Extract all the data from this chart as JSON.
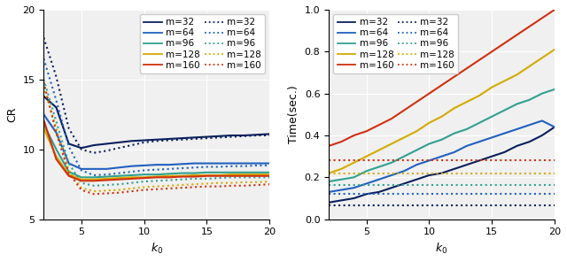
{
  "colors": {
    "m32": "#0a1f5c",
    "m64": "#2060c0",
    "m96": "#30a090",
    "m128": "#d4aa00",
    "m160": "#d03010"
  },
  "k0_left": [
    2,
    3,
    4,
    5,
    6,
    7,
    8,
    9,
    10,
    11,
    12,
    13,
    14,
    15,
    16,
    17,
    18,
    19,
    20
  ],
  "k0_right": [
    2,
    3,
    4,
    5,
    6,
    7,
    8,
    9,
    10,
    11,
    12,
    13,
    14,
    15,
    16,
    17,
    18,
    19,
    20
  ],
  "CR_solid_m32": [
    13.8,
    13.0,
    10.4,
    10.1,
    10.3,
    10.4,
    10.5,
    10.6,
    10.65,
    10.7,
    10.75,
    10.8,
    10.85,
    10.9,
    10.95,
    11.0,
    11.0,
    11.05,
    11.1
  ],
  "CR_solid_m64": [
    12.5,
    11.2,
    9.0,
    8.6,
    8.6,
    8.6,
    8.7,
    8.8,
    8.85,
    8.9,
    8.9,
    8.95,
    9.0,
    9.0,
    9.0,
    9.0,
    9.0,
    9.0,
    9.0
  ],
  "CR_solid_m96": [
    11.8,
    10.0,
    8.4,
    8.0,
    8.0,
    8.05,
    8.1,
    8.15,
    8.2,
    8.2,
    8.25,
    8.3,
    8.3,
    8.35,
    8.35,
    8.35,
    8.35,
    8.35,
    8.35
  ],
  "CR_solid_m128": [
    11.5,
    9.5,
    8.2,
    7.85,
    7.85,
    7.9,
    7.95,
    8.0,
    8.0,
    8.05,
    8.1,
    8.1,
    8.15,
    8.15,
    8.15,
    8.2,
    8.2,
    8.2,
    8.2
  ],
  "CR_solid_m160": [
    12.1,
    9.3,
    8.1,
    7.75,
    7.75,
    7.8,
    7.85,
    7.9,
    7.95,
    8.0,
    8.0,
    8.05,
    8.05,
    8.1,
    8.1,
    8.1,
    8.1,
    8.1,
    8.1
  ],
  "CR_dot_m32": [
    18.0,
    15.2,
    11.5,
    10.0,
    9.75,
    9.9,
    10.1,
    10.3,
    10.5,
    10.6,
    10.65,
    10.7,
    10.75,
    10.8,
    10.85,
    10.9,
    10.95,
    11.0,
    11.0
  ],
  "CR_dot_m64": [
    16.5,
    13.5,
    10.2,
    8.5,
    8.15,
    8.2,
    8.3,
    8.4,
    8.5,
    8.55,
    8.6,
    8.65,
    8.7,
    8.75,
    8.75,
    8.8,
    8.8,
    8.85,
    8.85
  ],
  "CR_dot_m96": [
    15.0,
    12.0,
    9.0,
    7.6,
    7.4,
    7.45,
    7.5,
    7.6,
    7.7,
    7.75,
    7.8,
    7.85,
    7.9,
    7.9,
    7.95,
    8.0,
    8.0,
    8.0,
    8.0
  ],
  "CR_dot_m128": [
    14.5,
    11.5,
    8.5,
    7.25,
    7.0,
    7.05,
    7.1,
    7.2,
    7.3,
    7.35,
    7.4,
    7.45,
    7.5,
    7.55,
    7.6,
    7.6,
    7.65,
    7.65,
    7.7
  ],
  "CR_dot_m160": [
    14.8,
    11.2,
    8.3,
    7.1,
    6.8,
    6.85,
    6.9,
    7.0,
    7.1,
    7.15,
    7.2,
    7.25,
    7.3,
    7.35,
    7.35,
    7.4,
    7.4,
    7.45,
    7.5
  ],
  "T_solid_m32": [
    0.08,
    0.09,
    0.1,
    0.12,
    0.13,
    0.15,
    0.17,
    0.19,
    0.21,
    0.22,
    0.24,
    0.26,
    0.28,
    0.3,
    0.32,
    0.35,
    0.37,
    0.4,
    0.44
  ],
  "T_solid_m64": [
    0.13,
    0.14,
    0.15,
    0.17,
    0.19,
    0.21,
    0.23,
    0.26,
    0.28,
    0.3,
    0.32,
    0.35,
    0.37,
    0.39,
    0.41,
    0.43,
    0.45,
    0.47,
    0.44
  ],
  "T_solid_m96": [
    0.18,
    0.19,
    0.2,
    0.23,
    0.25,
    0.27,
    0.3,
    0.33,
    0.36,
    0.38,
    0.41,
    0.43,
    0.46,
    0.49,
    0.52,
    0.55,
    0.57,
    0.6,
    0.62
  ],
  "T_solid_m128": [
    0.22,
    0.24,
    0.27,
    0.3,
    0.33,
    0.36,
    0.39,
    0.42,
    0.46,
    0.49,
    0.53,
    0.56,
    0.59,
    0.63,
    0.66,
    0.69,
    0.73,
    0.77,
    0.81
  ],
  "T_solid_m160": [
    0.35,
    0.37,
    0.4,
    0.42,
    0.45,
    0.48,
    0.52,
    0.56,
    0.6,
    0.64,
    0.68,
    0.72,
    0.76,
    0.8,
    0.84,
    0.88,
    0.92,
    0.96,
    1.0
  ],
  "T_dot_m32": [
    0.065,
    0.065,
    0.065,
    0.065,
    0.065,
    0.065,
    0.065,
    0.065,
    0.065,
    0.065,
    0.065,
    0.065,
    0.065,
    0.065,
    0.065,
    0.065,
    0.065,
    0.065,
    0.065
  ],
  "T_dot_m64": [
    0.12,
    0.12,
    0.12,
    0.12,
    0.12,
    0.12,
    0.12,
    0.12,
    0.12,
    0.12,
    0.12,
    0.12,
    0.12,
    0.12,
    0.12,
    0.12,
    0.12,
    0.12,
    0.12
  ],
  "T_dot_m96": [
    0.165,
    0.165,
    0.165,
    0.165,
    0.165,
    0.165,
    0.165,
    0.165,
    0.165,
    0.165,
    0.165,
    0.165,
    0.165,
    0.165,
    0.165,
    0.165,
    0.165,
    0.165,
    0.165
  ],
  "T_dot_m128": [
    0.22,
    0.22,
    0.22,
    0.22,
    0.22,
    0.22,
    0.22,
    0.22,
    0.22,
    0.22,
    0.22,
    0.22,
    0.22,
    0.22,
    0.22,
    0.22,
    0.22,
    0.22,
    0.22
  ],
  "T_dot_m160": [
    0.28,
    0.28,
    0.28,
    0.28,
    0.28,
    0.28,
    0.28,
    0.28,
    0.28,
    0.28,
    0.28,
    0.28,
    0.28,
    0.28,
    0.28,
    0.28,
    0.28,
    0.28,
    0.28
  ],
  "CR_ylim": [
    5,
    20
  ],
  "CR_yticks": [
    5,
    10,
    15,
    20
  ],
  "T_ylim": [
    0,
    1.0
  ],
  "T_yticks": [
    0,
    0.2,
    0.4,
    0.6,
    0.8,
    1.0
  ],
  "xlim": [
    2,
    20
  ],
  "xticks": [
    5,
    10,
    15,
    20
  ],
  "ms": [
    32,
    64,
    96,
    128,
    160
  ],
  "CR_ylabel": "CR",
  "T_ylabel": "Time(sec.)",
  "xlabel": "k_0",
  "legend_fontsize": 7.5,
  "tick_fontsize": 8,
  "label_fontsize": 9,
  "lw_solid": 1.5,
  "lw_dot": 1.5,
  "bg_color": "#f0f0f0"
}
